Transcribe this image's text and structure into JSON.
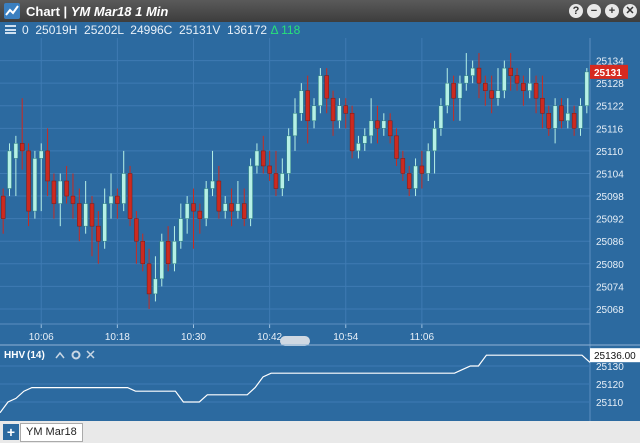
{
  "window": {
    "title": "Chart | ",
    "subtitle": "YM Mar18 1 Min",
    "buttons": [
      "?",
      "−",
      "+",
      "✕"
    ]
  },
  "toolbar": {
    "stats": "0  25019H  25202L  24996C  25131V  136172",
    "change": "Δ 118"
  },
  "price_axis": {
    "labels": [
      "25134",
      "25128",
      "25122",
      "25116",
      "25110",
      "25104",
      "25098",
      "25092",
      "25086",
      "25080",
      "25074",
      "25068"
    ],
    "current": "25131"
  },
  "time_axis": {
    "labels": [
      "10:06",
      "10:18",
      "10:30",
      "10:42",
      "10:54",
      "11:06"
    ]
  },
  "indicator": {
    "name": "HHV",
    "period": "(14)",
    "labels": [
      "25130",
      "25120",
      "25110"
    ],
    "current": "25136.00"
  },
  "footer": {
    "tab": "YM Mar18"
  },
  "colors": {
    "up": "#b6f0e6",
    "down": "#cc2a20",
    "background": "#2c6aa0",
    "current_price": "#d62a20"
  },
  "chart_data": {
    "type": "candlestick",
    "ylim": [
      25064,
      25140
    ],
    "candles": [
      [
        25098,
        25092,
        25100,
        25088
      ],
      [
        25100,
        25110,
        25112,
        25098
      ],
      [
        25108,
        25112,
        25114,
        25098
      ],
      [
        25112,
        25110,
        25124,
        25105
      ],
      [
        25110,
        25094,
        25112,
        25090
      ],
      [
        25094,
        25108,
        25110,
        25092
      ],
      [
        25108,
        25110,
        25112,
        25094
      ],
      [
        25110,
        25102,
        25116,
        25098
      ],
      [
        25102,
        25096,
        25104,
        25092
      ],
      [
        25096,
        25102,
        25104,
        25090
      ],
      [
        25102,
        25098,
        25106,
        25096
      ],
      [
        25098,
        25096,
        25104,
        25092
      ],
      [
        25096,
        25090,
        25100,
        25086
      ],
      [
        25090,
        25096,
        25102,
        25088
      ],
      [
        25096,
        25090,
        25098,
        25082
      ],
      [
        25090,
        25086,
        25094,
        25080
      ],
      [
        25086,
        25096,
        25100,
        25084
      ],
      [
        25096,
        25098,
        25104,
        25092
      ],
      [
        25098,
        25096,
        25100,
        25092
      ],
      [
        25096,
        25104,
        25110,
        25094
      ],
      [
        25104,
        25092,
        25106,
        25090
      ],
      [
        25092,
        25086,
        25094,
        25080
      ],
      [
        25086,
        25080,
        25088,
        25078
      ],
      [
        25080,
        25072,
        25084,
        25068
      ],
      [
        25072,
        25076,
        25082,
        25070
      ],
      [
        25076,
        25086,
        25088,
        25074
      ],
      [
        25086,
        25080,
        25090,
        25078
      ],
      [
        25080,
        25086,
        25090,
        25078
      ],
      [
        25086,
        25092,
        25096,
        25084
      ],
      [
        25092,
        25096,
        25098,
        25088
      ],
      [
        25096,
        25094,
        25100,
        25084
      ],
      [
        25094,
        25092,
        25096,
        25088
      ],
      [
        25092,
        25100,
        25102,
        25090
      ],
      [
        25100,
        25102,
        25110,
        25098
      ],
      [
        25102,
        25094,
        25106,
        25092
      ],
      [
        25094,
        25096,
        25098,
        25092
      ],
      [
        25096,
        25094,
        25100,
        25090
      ],
      [
        25094,
        25096,
        25102,
        25092
      ],
      [
        25096,
        25092,
        25100,
        25090
      ],
      [
        25092,
        25106,
        25108,
        25090
      ],
      [
        25106,
        25110,
        25112,
        25104
      ],
      [
        25110,
        25106,
        25114,
        25104
      ],
      [
        25106,
        25104,
        25110,
        25102
      ],
      [
        25104,
        25100,
        25110,
        25098
      ],
      [
        25100,
        25104,
        25108,
        25098
      ],
      [
        25104,
        25114,
        25116,
        25102
      ],
      [
        25114,
        25120,
        25124,
        25110
      ],
      [
        25120,
        25126,
        25128,
        25118
      ],
      [
        25126,
        25118,
        25130,
        25112
      ],
      [
        25118,
        25122,
        25124,
        25116
      ],
      [
        25122,
        25130,
        25132,
        25120
      ],
      [
        25130,
        25124,
        25132,
        25120
      ],
      [
        25124,
        25118,
        25126,
        25114
      ],
      [
        25118,
        25122,
        25124,
        25116
      ],
      [
        25122,
        25120,
        25124,
        25116
      ],
      [
        25120,
        25110,
        25122,
        25108
      ],
      [
        25110,
        25112,
        25114,
        25108
      ],
      [
        25112,
        25114,
        25116,
        25110
      ],
      [
        25114,
        25118,
        25124,
        25112
      ],
      [
        25118,
        25116,
        25122,
        25112
      ],
      [
        25116,
        25118,
        25120,
        25114
      ],
      [
        25118,
        25114,
        25120,
        25112
      ],
      [
        25114,
        25108,
        25116,
        25106
      ],
      [
        25108,
        25104,
        25110,
        25102
      ],
      [
        25104,
        25100,
        25106,
        25098
      ],
      [
        25100,
        25106,
        25108,
        25098
      ],
      [
        25106,
        25104,
        25110,
        25100
      ],
      [
        25104,
        25110,
        25112,
        25102
      ],
      [
        25110,
        25116,
        25118,
        25104
      ],
      [
        25116,
        25122,
        25124,
        25114
      ],
      [
        25122,
        25128,
        25132,
        25120
      ],
      [
        25128,
        25124,
        25130,
        25118
      ],
      [
        25124,
        25128,
        25130,
        25118
      ],
      [
        25128,
        25130,
        25136,
        25126
      ],
      [
        25130,
        25132,
        25134,
        25128
      ],
      [
        25132,
        25128,
        25136,
        25124
      ],
      [
        25128,
        25126,
        25130,
        25122
      ],
      [
        25126,
        25124,
        25130,
        25120
      ],
      [
        25124,
        25126,
        25132,
        25122
      ],
      [
        25126,
        25132,
        25134,
        25124
      ],
      [
        25132,
        25130,
        25136,
        25126
      ],
      [
        25130,
        25128,
        25132,
        25126
      ],
      [
        25128,
        25126,
        25130,
        25122
      ],
      [
        25126,
        25128,
        25132,
        25124
      ],
      [
        25128,
        25124,
        25130,
        25120
      ],
      [
        25124,
        25120,
        25130,
        25116
      ],
      [
        25120,
        25116,
        25122,
        25114
      ],
      [
        25116,
        25122,
        25124,
        25112
      ],
      [
        25122,
        25118,
        25124,
        25116
      ],
      [
        25118,
        25120,
        25124,
        25116
      ],
      [
        25120,
        25116,
        25122,
        25114
      ],
      [
        25116,
        25122,
        25124,
        25114
      ],
      [
        25122,
        25131,
        25132,
        25120
      ]
    ],
    "hhv": [
      25104,
      25110,
      25112,
      25116,
      25118,
      25118,
      25118,
      25118,
      25118,
      25118,
      25118,
      25118,
      25118,
      25118,
      25118,
      25118,
      25118,
      25116,
      25116,
      25116,
      25116,
      25116,
      25116,
      25110,
      25110,
      25110,
      25114,
      25114,
      25114,
      25114,
      25114,
      25114,
      25118,
      25124,
      25126,
      25126,
      25126,
      25126,
      25126,
      25126,
      25126,
      25126,
      25126,
      25126,
      25126,
      25126,
      25126,
      25126,
      25126,
      25126,
      25126,
      25126,
      25126,
      25126,
      25126,
      25126,
      25126,
      25126,
      25128,
      25130,
      25130,
      25136,
      25136,
      25136,
      25136,
      25136,
      25136,
      25136,
      25136,
      25136,
      25136,
      25136,
      25136,
      25136,
      25132
    ],
    "hhv_ylim": [
      25100,
      25140
    ]
  }
}
